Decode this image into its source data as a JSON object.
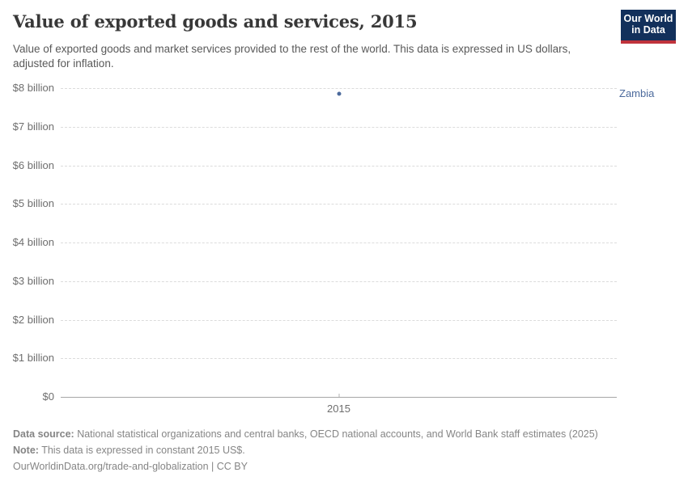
{
  "header": {
    "title": "Value of exported goods and services, 2015",
    "subtitle": "Value of exported goods and market services provided to the rest of the world. This data is expressed in US dollars, adjusted for inflation.",
    "logo": {
      "line1": "Our World",
      "line2": "in Data",
      "bg_color": "#12305b",
      "accent_color": "#c0333c"
    }
  },
  "chart_data": {
    "type": "scatter",
    "title": "Value of exported goods and services, 2015",
    "xlabel": "",
    "ylabel": "",
    "x": [
      2015
    ],
    "x_tick_labels": [
      "2015"
    ],
    "series": [
      {
        "name": "Zambia",
        "x": [
          2015
        ],
        "values": [
          7.85
        ],
        "unit": "billion US$",
        "color": "#4c6a9c"
      }
    ],
    "ylim": [
      0,
      8
    ],
    "grid": true,
    "legend_position": "right",
    "y_axis_ticks": [
      {
        "value": 0,
        "label": "$0"
      },
      {
        "value": 1,
        "label": "$1 billion"
      },
      {
        "value": 2,
        "label": "$2 billion"
      },
      {
        "value": 3,
        "label": "$3 billion"
      },
      {
        "value": 4,
        "label": "$4 billion"
      },
      {
        "value": 5,
        "label": "$5 billion"
      },
      {
        "value": 6,
        "label": "$6 billion"
      },
      {
        "value": 7,
        "label": "$7 billion"
      },
      {
        "value": 8,
        "label": "$8 billion"
      }
    ]
  },
  "footer": {
    "source_label": "Data source:",
    "source_text": " National statistical organizations and central banks, OECD national accounts, and World Bank staff estimates (2025)",
    "note_label": "Note:",
    "note_text": " This data is expressed in constant 2015 US$.",
    "url_text": "OurWorldinData.org/trade-and-globalization | CC BY"
  }
}
